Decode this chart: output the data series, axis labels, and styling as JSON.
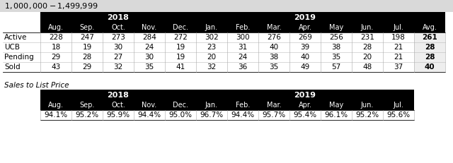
{
  "title": "$1,000,000 - $1,499,999",
  "title_bg": "#d9d9d9",
  "header_bg": "#000000",
  "avg_col_bg": "#eeeeee",
  "months": [
    "Aug.",
    "Sep.",
    "Oct.",
    "Nov.",
    "Dec.",
    "Jan.",
    "Feb.",
    "Mar.",
    "Apr.",
    "May",
    "Jun.",
    "Jul.",
    "Avg."
  ],
  "row_labels": [
    "Active",
    "UCB",
    "Pending",
    "Sold"
  ],
  "table1_data": [
    [
      228,
      247,
      273,
      284,
      272,
      302,
      300,
      276,
      269,
      256,
      231,
      198,
      261
    ],
    [
      18,
      19,
      30,
      24,
      19,
      23,
      31,
      40,
      39,
      38,
      28,
      21,
      28
    ],
    [
      29,
      28,
      27,
      30,
      19,
      20,
      24,
      38,
      40,
      35,
      20,
      21,
      28
    ],
    [
      43,
      29,
      32,
      35,
      41,
      32,
      36,
      35,
      49,
      57,
      48,
      37,
      40
    ]
  ],
  "sales_label": "Sales to List Price",
  "months2": [
    "Aug.",
    "Sep.",
    "Oct.",
    "Nov.",
    "Dec.",
    "Jan.",
    "Feb.",
    "Mar.",
    "Apr.",
    "May",
    "Jun.",
    "Jul."
  ],
  "table2_data": [
    "94.1%",
    "95.2%",
    "95.9%",
    "94.4%",
    "95.0%",
    "96.7%",
    "94.4%",
    "95.7%",
    "95.4%",
    "96.1%",
    "95.2%",
    "95.6%"
  ]
}
